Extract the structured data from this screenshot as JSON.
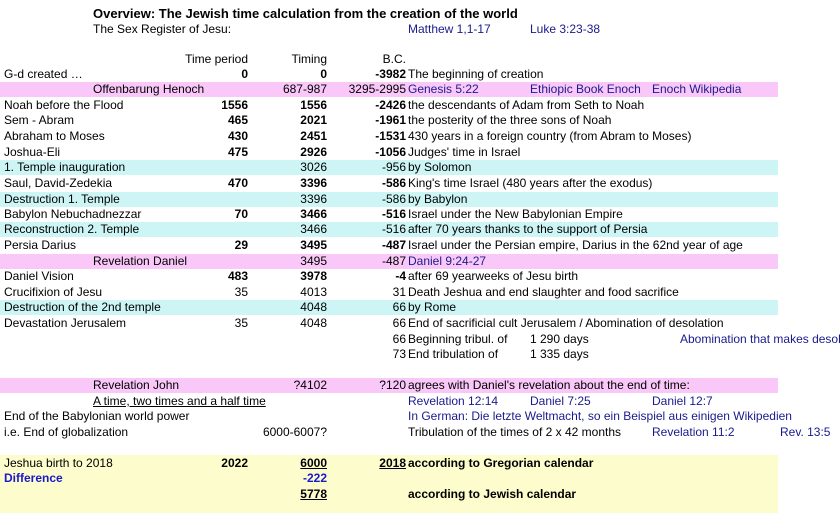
{
  "header": {
    "title": "Overview: The Jewish time calculation from the creation of the world",
    "subtitle": "The Sex Register of Jesu:",
    "ref1": "Matthew 1,1-17",
    "ref2": "Luke 3:23-38"
  },
  "columns": {
    "time_period": "Time period",
    "timing": "Timing",
    "bc": "B.C."
  },
  "rows": [
    {
      "label": "G-d created …",
      "period": "0",
      "timing": "0",
      "bc": "-3982",
      "desc": "The beginning of creation"
    },
    {
      "label": "Offenbarung Henoch",
      "timing": "687-987",
      "bc": "3295-2995",
      "desc": "Genesis 5:22",
      "extra1": "Ethiopic Book Enoch",
      "extra2": "Enoch Wikipedia"
    },
    {
      "label": "Noah before the Flood",
      "period": "1556",
      "timing": "1556",
      "bc": "-2426",
      "desc": "the descendants of Adam from Seth to Noah"
    },
    {
      "label": "Sem - Abram",
      "period": "465",
      "timing": "2021",
      "bc": "-1961",
      "desc": "the posterity of the three sons of Noah"
    },
    {
      "label": "Abraham to Moses",
      "period": "430",
      "timing": "2451",
      "bc": "-1531",
      "desc": "430 years in a foreign country (from Abram to Moses)"
    },
    {
      "label": "Joshua-Eli",
      "period": "475",
      "timing": "2926",
      "bc": "-1056",
      "desc": "Judges' time in Israel"
    },
    {
      "label": "1. Temple inauguration",
      "timing": "3026",
      "bc": "-956",
      "desc": "by Solomon"
    },
    {
      "label": "Saul, David-Zedekia",
      "period": "470",
      "timing": "3396",
      "bc": "-586",
      "desc": "King's time Israel (480 years after the exodus)"
    },
    {
      "label": "Destruction 1. Temple",
      "timing": "3396",
      "bc": "-586",
      "desc": "by Babylon"
    },
    {
      "label": "Babylon Nebuchadnezzar",
      "period": "70",
      "timing": "3466",
      "bc": "-516",
      "desc": "Israel under the New Babylonian Empire"
    },
    {
      "label": "Reconstruction 2. Temple",
      "timing": "3466",
      "bc": "-516",
      "desc": "after 70 years thanks to the support of Persia"
    },
    {
      "label": "Persia Darius",
      "period": "29",
      "timing": "3495",
      "bc": "-487",
      "desc": "Israel under the Persian empire, Darius in the 62nd year of age"
    },
    {
      "label": "Revelation Daniel",
      "timing": "3495",
      "bc": "-487",
      "desc": "Daniel 9:24-27"
    },
    {
      "label": "Daniel Vision",
      "period": "483",
      "timing": "3978",
      "bc": "-4",
      "desc": "after 69 yearweeks of Jesu birth"
    },
    {
      "label": "Crucifixion of Jesu",
      "period": "35",
      "timing": "4013",
      "bc": "31",
      "desc": "Death Jeshua and end slaughter and food sacrifice"
    },
    {
      "label": "Destruction of the 2nd temple",
      "timing": "4048",
      "bc": "66",
      "desc": "by Rome"
    },
    {
      "label": "Devastation Jerusalem",
      "period": "35",
      "timing": "4048",
      "bc": "66",
      "desc": "End of sacrificial cult Jerusalem / Abomination of desolation"
    },
    {
      "bc": "66",
      "desc": "Beginning tribul. of",
      "days": "1 290 days",
      "extra": "Abomination that makes desolate"
    },
    {
      "bc": "73",
      "desc": "End tribulation of",
      "days": "1 335 days"
    }
  ],
  "john": {
    "label": "Revelation John",
    "timing": "?4102",
    "bc": "?120",
    "desc": "agrees with Daniel's revelation about the end of time:",
    "subtitle": "A time, two times and a half time",
    "ref1": "Revelation 12:14",
    "ref2": "Daniel 7:25",
    "ref3": "Daniel 12:7",
    "line2_label": "End of the Babylonian world power",
    "line2_desc": "In German: Die letzte Weltmacht, so ein Beispiel aus einigen Wikipedien",
    "line3_label": "i.e. End of globalization",
    "line3_timing": "6000-6007?",
    "line3_desc": "Tribulation of the times of 2 x 42 months",
    "line3_ref1": "Revelation 11:2",
    "line3_ref2": "Rev. 13:5"
  },
  "summary": {
    "label": "Jeshua birth to 2018",
    "period": "2022",
    "timing": "6000",
    "year": "2018",
    "desc1": "according to Gregorian calendar",
    "diff_label": "Difference",
    "diff_value": "-222",
    "jewish_value": "5778",
    "desc2": "according to Jewish calendar"
  }
}
